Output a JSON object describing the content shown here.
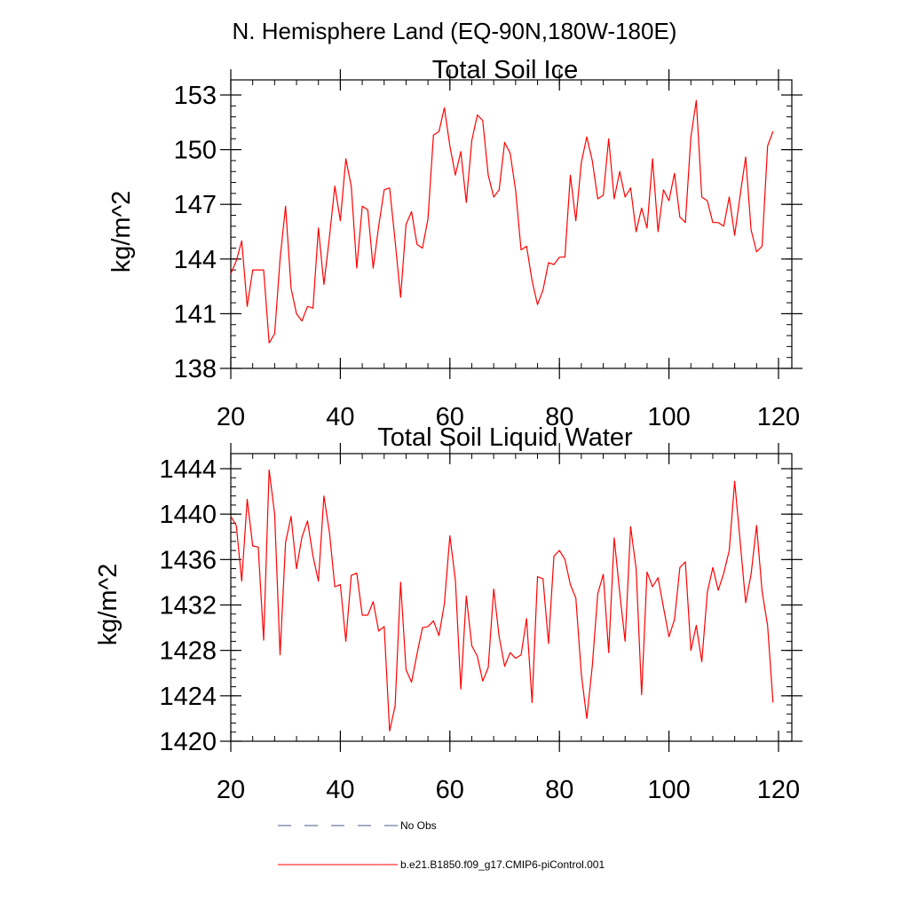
{
  "page": {
    "region_title": "N. Hemisphere Land (EQ-90N,180W-180E)"
  },
  "colors": {
    "model_line": "#ff0000",
    "obs_line": "#4b5a8c",
    "axis": "#000000"
  },
  "legend": {
    "obs_label": "No Obs",
    "model_label": "b.e21.B1850.f09_g17.CMIP6-piControl.001"
  },
  "chart_data": [
    {
      "type": "line",
      "title": "Total Soil Ice",
      "xlabel": "",
      "ylabel": "kg/m^2",
      "xlim": [
        20,
        120
      ],
      "ylim": [
        138,
        153
      ],
      "xticks": [
        20,
        40,
        60,
        80,
        100,
        120
      ],
      "yticks": [
        138,
        141,
        144,
        147,
        150,
        153
      ],
      "yminor_step": 0.6,
      "xminor_step": 4,
      "x": [
        20,
        21,
        22,
        23,
        24,
        25,
        26,
        27,
        28,
        29,
        30,
        31,
        32,
        33,
        34,
        35,
        36,
        37,
        38,
        39,
        40,
        41,
        42,
        43,
        44,
        45,
        46,
        47,
        48,
        49,
        50,
        51,
        52,
        53,
        54,
        55,
        56,
        57,
        58,
        59,
        60,
        61,
        62,
        63,
        64,
        65,
        66,
        67,
        68,
        69,
        70,
        71,
        72,
        73,
        74,
        75,
        76,
        77,
        78,
        79,
        80,
        81,
        82,
        83,
        84,
        85,
        86,
        87,
        88,
        89,
        90,
        91,
        92,
        93,
        94,
        95,
        96,
        97,
        98,
        99,
        100,
        101,
        102,
        103,
        104,
        105,
        106,
        107,
        108,
        109,
        110,
        111,
        112,
        113,
        114,
        115,
        116,
        117,
        118,
        119
      ],
      "series": [
        {
          "name": "b.e21.B1850.f09_g17.CMIP6-piControl.001",
          "values": [
            143.2,
            143.9,
            145.0,
            141.4,
            143.4,
            143.4,
            143.4,
            139.4,
            139.9,
            144.0,
            146.9,
            142.4,
            141.0,
            140.6,
            141.4,
            141.3,
            145.7,
            142.6,
            145.2,
            148.0,
            146.1,
            149.5,
            148.0,
            143.5,
            146.9,
            146.7,
            143.5,
            145.8,
            147.8,
            147.9,
            145.0,
            141.9,
            145.9,
            146.6,
            144.8,
            144.6,
            146.2,
            150.8,
            151.0,
            152.3,
            150.2,
            148.6,
            149.9,
            147.1,
            150.5,
            151.9,
            151.6,
            148.6,
            147.4,
            147.8,
            150.4,
            149.8,
            147.8,
            144.5,
            144.7,
            142.8,
            141.5,
            142.3,
            143.8,
            143.7,
            144.1,
            144.1,
            148.6,
            146.1,
            149.3,
            150.7,
            149.4,
            147.3,
            147.5,
            150.6,
            147.3,
            148.8,
            147.4,
            147.9,
            145.5,
            146.8,
            145.7,
            149.5,
            145.5,
            147.8,
            147.2,
            148.7,
            146.3,
            146.0,
            150.7,
            152.7,
            147.4,
            147.2,
            146.0,
            146.0,
            145.8,
            147.4,
            145.3,
            147.5,
            149.6,
            145.6,
            144.4,
            144.7,
            150.2,
            151.0
          ]
        }
      ]
    },
    {
      "type": "line",
      "title": "Total Soil Liquid Water",
      "xlabel": "",
      "ylabel": "kg/m^2",
      "xlim": [
        20,
        120
      ],
      "ylim": [
        1420,
        1444
      ],
      "xticks": [
        20,
        40,
        60,
        80,
        100,
        120
      ],
      "yticks": [
        1420,
        1424,
        1428,
        1432,
        1436,
        1440,
        1444
      ],
      "yminor_step": 0.8,
      "xminor_step": 4,
      "x": [
        20,
        21,
        22,
        23,
        24,
        25,
        26,
        27,
        28,
        29,
        30,
        31,
        32,
        33,
        34,
        35,
        36,
        37,
        38,
        39,
        40,
        41,
        42,
        43,
        44,
        45,
        46,
        47,
        48,
        49,
        50,
        51,
        52,
        53,
        54,
        55,
        56,
        57,
        58,
        59,
        60,
        61,
        62,
        63,
        64,
        65,
        66,
        67,
        68,
        69,
        70,
        71,
        72,
        73,
        74,
        75,
        76,
        77,
        78,
        79,
        80,
        81,
        82,
        83,
        84,
        85,
        86,
        87,
        88,
        89,
        90,
        91,
        92,
        93,
        94,
        95,
        96,
        97,
        98,
        99,
        100,
        101,
        102,
        103,
        104,
        105,
        106,
        107,
        108,
        109,
        110,
        111,
        112,
        113,
        114,
        115,
        116,
        117,
        118,
        119
      ],
      "series": [
        {
          "name": "b.e21.B1850.f09_g17.CMIP6-piControl.001",
          "values": [
            1439.8,
            1439.0,
            1434.1,
            1441.3,
            1437.2,
            1437.1,
            1428.9,
            1443.9,
            1440.0,
            1427.6,
            1437.5,
            1439.8,
            1435.2,
            1438.0,
            1439.4,
            1436.3,
            1434.1,
            1441.6,
            1438.4,
            1433.6,
            1433.8,
            1428.8,
            1434.6,
            1434.8,
            1431.1,
            1431.1,
            1432.3,
            1429.7,
            1430.1,
            1420.9,
            1423.1,
            1434.0,
            1426.3,
            1425.2,
            1427.7,
            1430.0,
            1430.1,
            1430.6,
            1429.3,
            1432.1,
            1438.1,
            1434.2,
            1424.6,
            1432.8,
            1428.4,
            1427.5,
            1425.3,
            1426.5,
            1433.4,
            1429.2,
            1426.6,
            1427.8,
            1427.3,
            1427.6,
            1430.8,
            1423.4,
            1434.5,
            1434.3,
            1428.6,
            1436.3,
            1436.8,
            1436.0,
            1433.8,
            1432.6,
            1425.9,
            1422.0,
            1426.6,
            1433.0,
            1434.7,
            1427.8,
            1437.9,
            1433.1,
            1428.8,
            1438.9,
            1435.2,
            1424.1,
            1434.9,
            1433.6,
            1434.4,
            1431.8,
            1429.2,
            1430.7,
            1435.3,
            1435.8,
            1428.0,
            1430.2,
            1427.0,
            1433.1,
            1435.3,
            1433.3,
            1434.8,
            1436.8,
            1442.9,
            1437.6,
            1432.2,
            1434.7,
            1439.0,
            1433.2,
            1430.2,
            1423.4
          ]
        }
      ]
    }
  ]
}
